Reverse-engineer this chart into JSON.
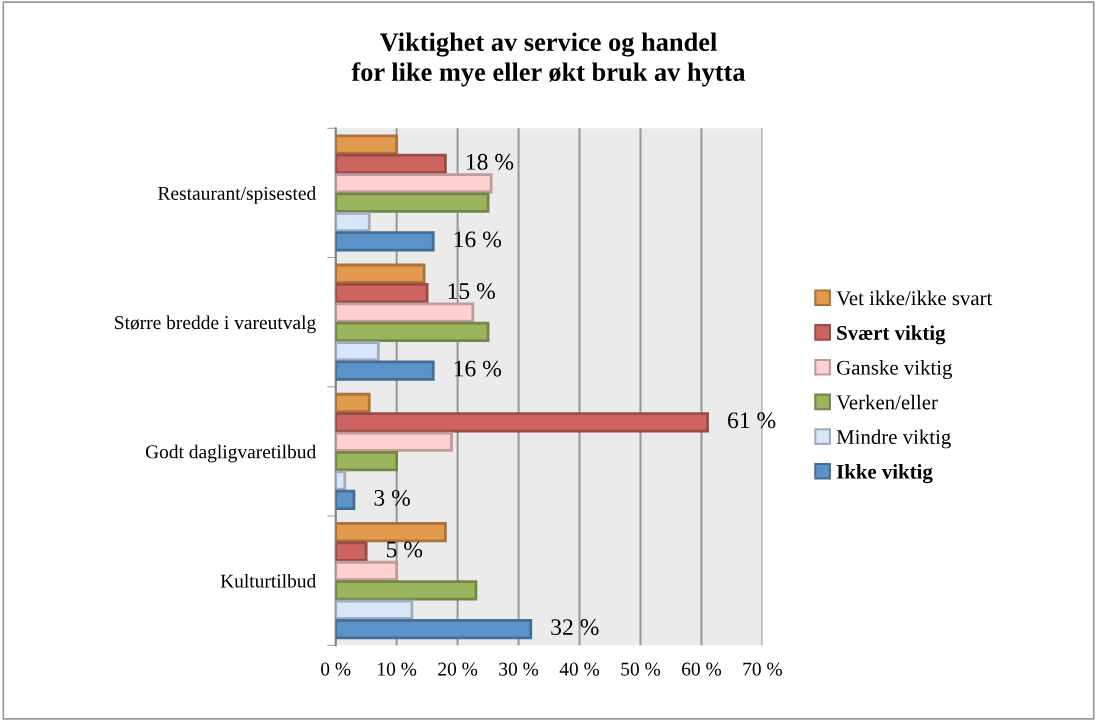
{
  "chart_data": {
    "type": "bar",
    "orientation": "horizontal",
    "title": "Viktighet av service og handel\nfor like mye eller økt bruk av hytta",
    "categories": [
      "Restaurant/spisested",
      "Større bredde i vareutvalg",
      "Godt dagligvaretilbud",
      "Kulturtilbud"
    ],
    "series": [
      {
        "name": "Vet ikke/ikke svart",
        "color": "#e39a4f",
        "values": [
          10,
          14.5,
          5.5,
          18
        ]
      },
      {
        "name": "Svært viktig",
        "color": "#cd645f",
        "values": [
          18,
          15,
          61,
          5
        ],
        "value_labels": [
          "18 %",
          "15 %",
          "61 %",
          "5 %"
        ]
      },
      {
        "name": "Ganske viktig",
        "color": "#ffd0d0",
        "values": [
          25.5,
          22.5,
          19,
          10
        ]
      },
      {
        "name": "Verken/eller",
        "color": "#9bb55f",
        "values": [
          25,
          25,
          10,
          23
        ]
      },
      {
        "name": "Mindre viktig",
        "color": "#d7e6fb",
        "values": [
          5.5,
          7,
          1.5,
          12.5
        ]
      },
      {
        "name": "Ikke viktig",
        "color": "#5b93c9",
        "values": [
          16,
          16,
          3,
          32
        ],
        "value_labels": [
          "16 %",
          "16 %",
          "3 %",
          "32 %"
        ]
      }
    ],
    "xlim": [
      0,
      70
    ],
    "xticks": [
      {
        "value": 0,
        "label": "0 %"
      },
      {
        "value": 10,
        "label": "10 %"
      },
      {
        "value": 20,
        "label": "20 %"
      },
      {
        "value": 30,
        "label": "30 %"
      },
      {
        "value": 40,
        "label": "40 %"
      },
      {
        "value": 50,
        "label": "50 %"
      },
      {
        "value": 60,
        "label": "60 %"
      },
      {
        "value": 70,
        "label": "70 %"
      }
    ],
    "grid": "x",
    "legend": "right"
  }
}
